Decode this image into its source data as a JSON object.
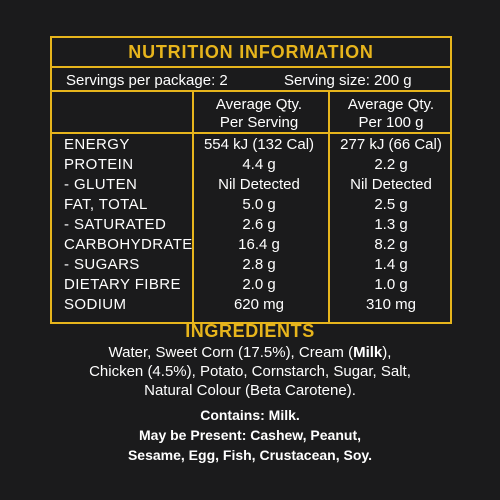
{
  "nutrition": {
    "title": "NUTRITION INFORMATION",
    "servings_per_package": "Servings per package: 2",
    "serving_size": "Serving size: 200 g",
    "col1_header_line1": "Average Qty.",
    "col1_header_line2": "Per Serving",
    "col2_header_line1": "Average Qty.",
    "col2_header_line2": "Per 100 g",
    "rows": [
      {
        "name": "ENERGY",
        "per_serving": "554 kJ (132 Cal)",
        "per_100g": "277 kJ (66 Cal)"
      },
      {
        "name": "PROTEIN",
        "per_serving": "4.4 g",
        "per_100g": "2.2 g"
      },
      {
        "name": "- GLUTEN",
        "per_serving": "Nil Detected",
        "per_100g": "Nil Detected"
      },
      {
        "name": "FAT, TOTAL",
        "per_serving": "5.0 g",
        "per_100g": "2.5 g"
      },
      {
        "name": "- SATURATED",
        "per_serving": "2.6 g",
        "per_100g": "1.3 g"
      },
      {
        "name": "CARBOHYDRATE",
        "per_serving": "16.4 g",
        "per_100g": "8.2 g"
      },
      {
        "name": "- SUGARS",
        "per_serving": "2.8 g",
        "per_100g": "1.4 g"
      },
      {
        "name": "DIETARY FIBRE",
        "per_serving": "2.0 g",
        "per_100g": "1.0 g"
      },
      {
        "name": "SODIUM",
        "per_serving": "620 mg",
        "per_100g": "310 mg"
      }
    ]
  },
  "ingredients": {
    "title": "INGREDIENTS",
    "line1_before": "Water, Sweet Corn (17.5%), Cream (",
    "line1_bold": "Milk",
    "line1_after": "),",
    "line2": "Chicken (4.5%), Potato, Cornstarch, Sugar, Salt,",
    "line3": "Natural Colour (Beta Carotene).",
    "contains": "Contains: Milk.",
    "may_be_present_line1": "May be Present: Cashew, Peanut,",
    "may_be_present_line2": "Sesame, Egg, Fish, Crustacean, Soy."
  },
  "colors": {
    "accent": "#e7b51c",
    "background": "#1b1b1c",
    "text": "#ffffff"
  }
}
